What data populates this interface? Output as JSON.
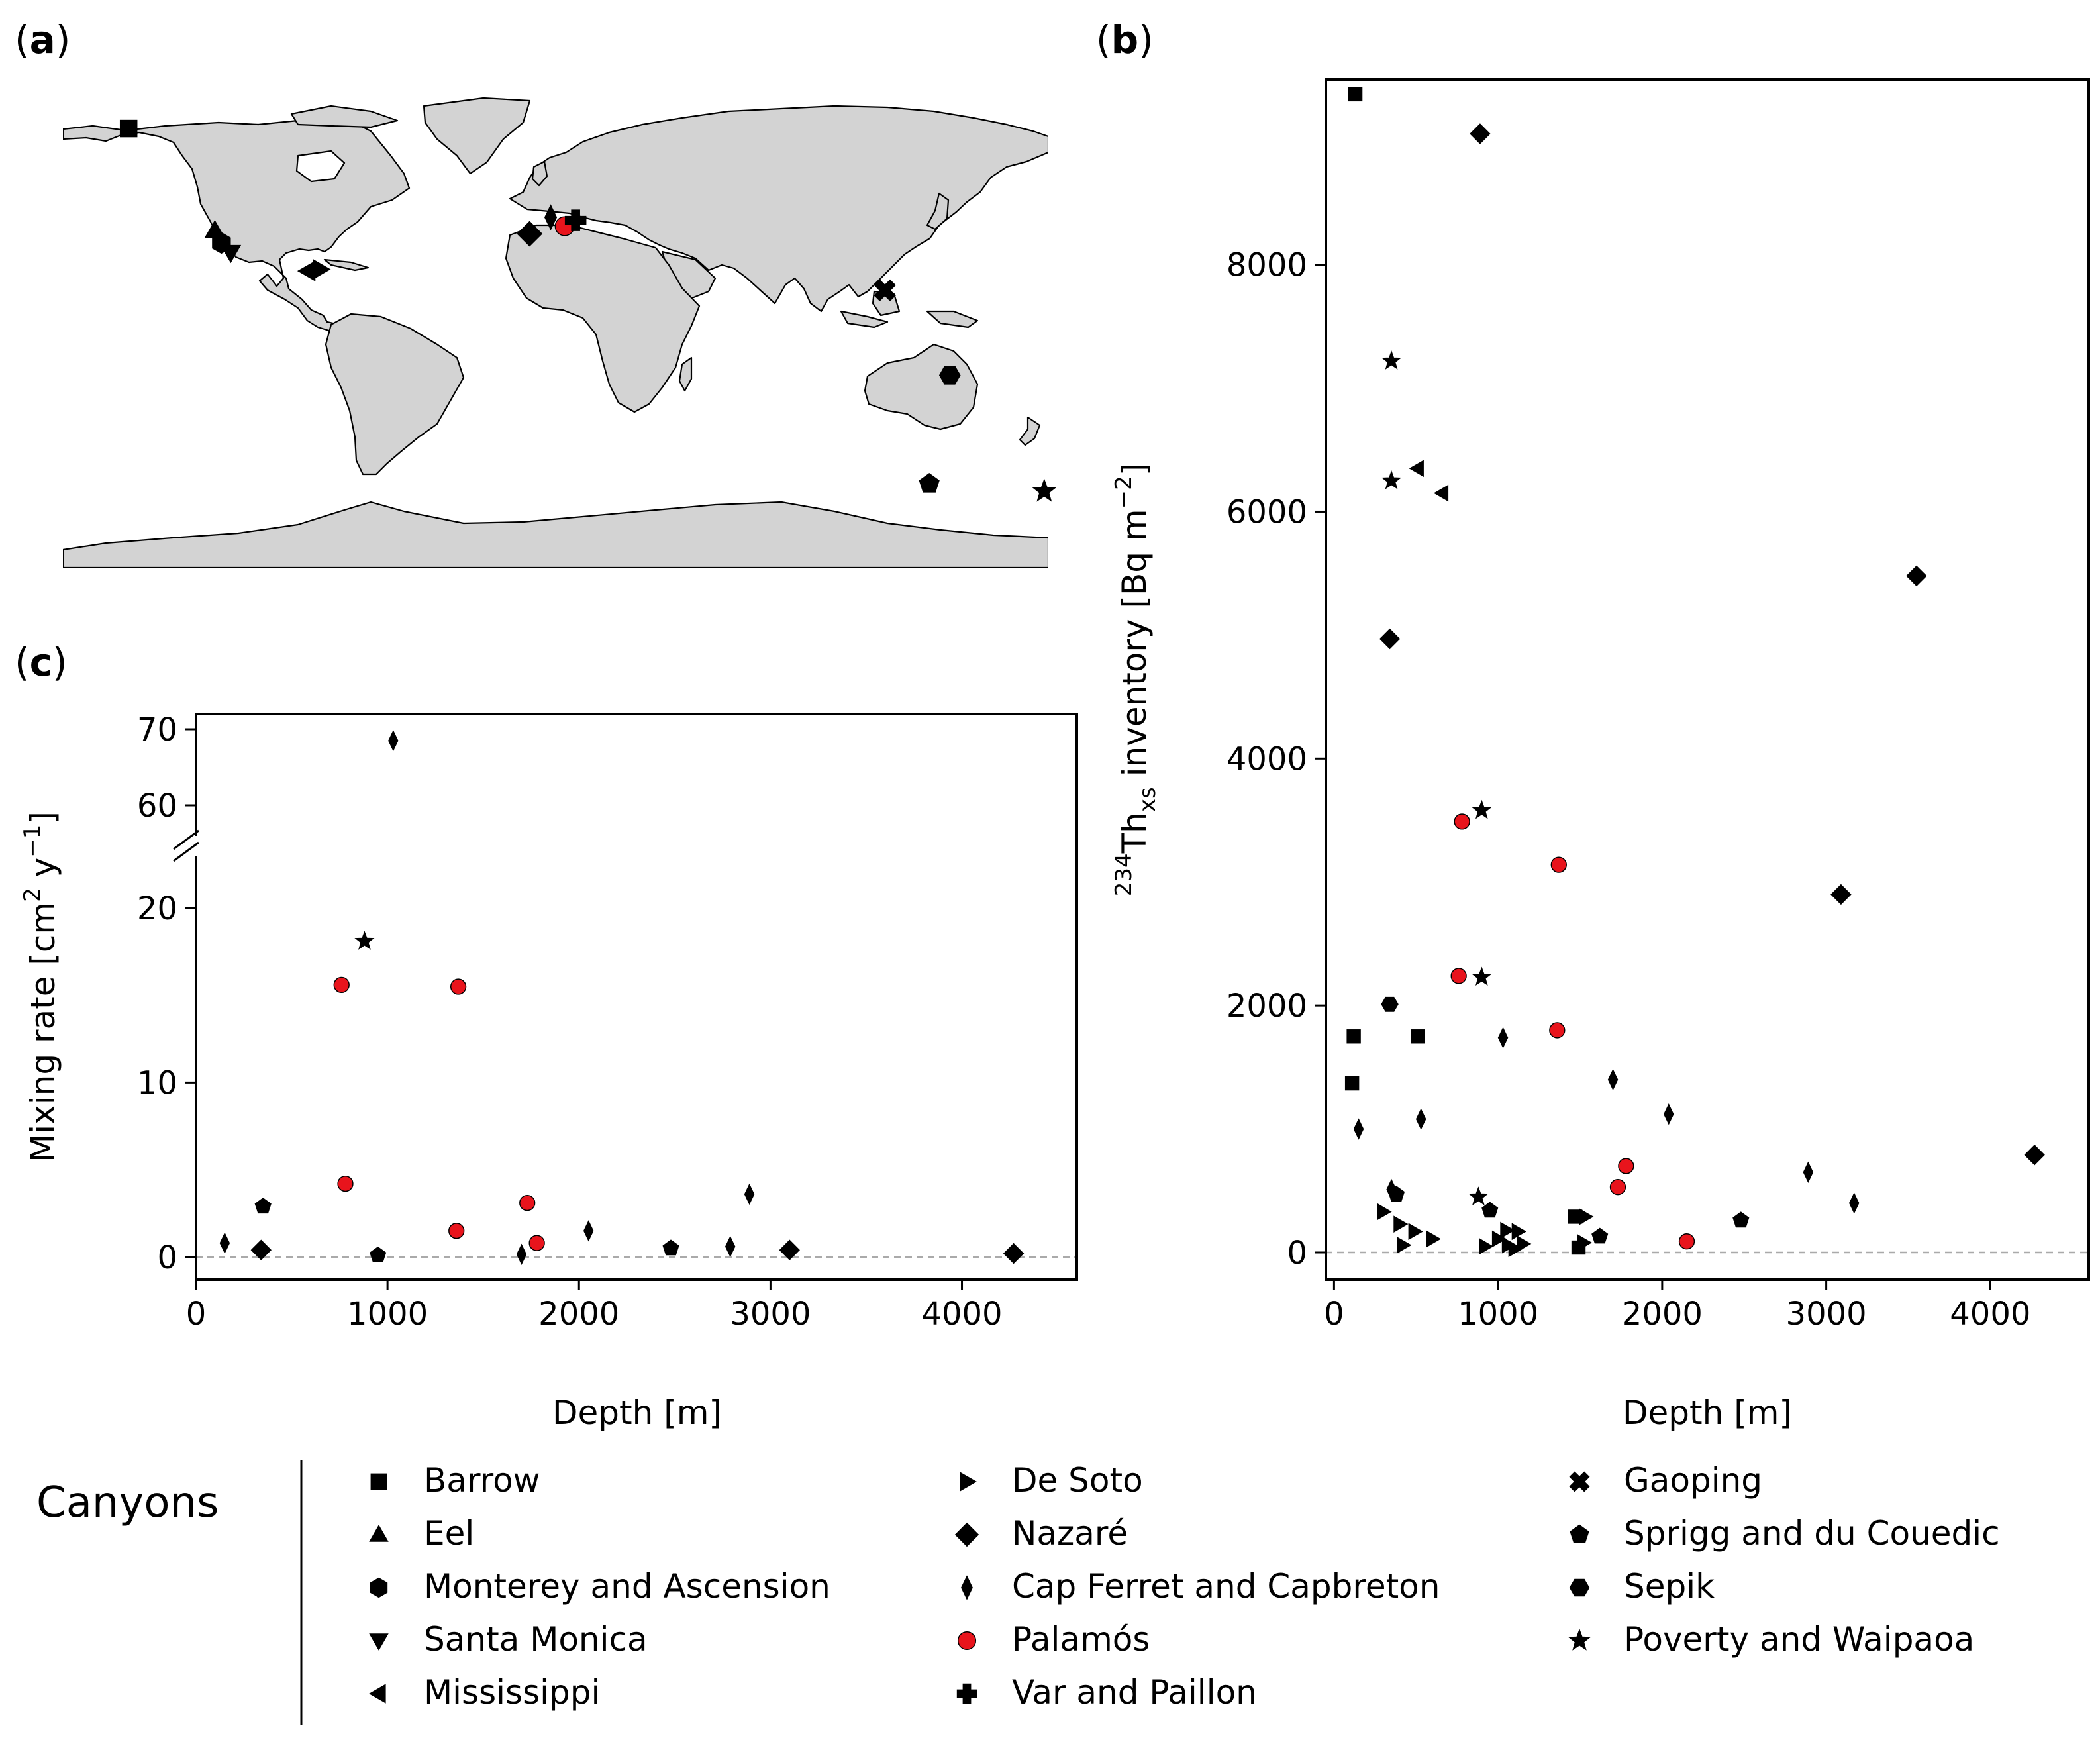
{
  "panels": {
    "a": {
      "label": "a"
    },
    "b": {
      "label": "b"
    },
    "c": {
      "label": "c"
    }
  },
  "legend": {
    "title": "Canyons",
    "entries": [
      {
        "name": "Barrow",
        "marker": "square",
        "color": "#000000"
      },
      {
        "name": "Eel",
        "marker": "triangle-up",
        "color": "#000000"
      },
      {
        "name": "Monterey and Ascension",
        "marker": "hexagon",
        "color": "#000000"
      },
      {
        "name": "Santa Monica",
        "marker": "triangle-down",
        "color": "#000000"
      },
      {
        "name": "Mississippi",
        "marker": "triangle-left",
        "color": "#000000"
      },
      {
        "name": "De Soto",
        "marker": "triangle-right",
        "color": "#000000"
      },
      {
        "name": "Nazaré",
        "marker": "diamond",
        "color": "#000000"
      },
      {
        "name": "Cap Ferret and Capbreton",
        "marker": "thin-diamond",
        "color": "#000000"
      },
      {
        "name": "Palamós",
        "marker": "circle",
        "color": "#e8141c"
      },
      {
        "name": "Var and Paillon",
        "marker": "plus",
        "color": "#000000"
      },
      {
        "name": "Gaoping",
        "marker": "x",
        "color": "#000000"
      },
      {
        "name": "Sprigg and du Couedic",
        "marker": "pentagon",
        "color": "#000000"
      },
      {
        "name": "Sepik",
        "marker": "hexagon2",
        "color": "#000000"
      },
      {
        "name": "Poverty and Waipaoa",
        "marker": "star",
        "color": "#000000"
      }
    ]
  },
  "colors": {
    "land": "#d3d3d3",
    "coast": "#000000",
    "borders": "#a6a6a6",
    "palamos": "#e8141c",
    "zero_line": "#aaaaaa"
  },
  "chart_data": [
    {
      "panel": "a",
      "type": "map",
      "projection": "plate-carree",
      "lon_range": [
        -180,
        180
      ],
      "lat_range": [
        -90,
        90
      ],
      "points": [
        {
          "canyon": "Barrow",
          "lon": -156,
          "lat": 71.5
        },
        {
          "canyon": "Eel",
          "lon": -124.5,
          "lat": 40.5
        },
        {
          "canyon": "Monterey and Ascension",
          "lon": -122.1,
          "lat": 36.7
        },
        {
          "canyon": "Santa Monica",
          "lon": -118.7,
          "lat": 33.8
        },
        {
          "canyon": "Mississippi",
          "lon": -90.5,
          "lat": 28.2
        },
        {
          "canyon": "De Soto",
          "lon": -86,
          "lat": 28.7
        },
        {
          "canyon": "Nazaré",
          "lon": -9.5,
          "lat": 39.5
        },
        {
          "canyon": "Cap Ferret and Capbreton",
          "lon": -1.8,
          "lat": 44.5
        },
        {
          "canyon": "Palamós",
          "lon": 3.3,
          "lat": 41.8
        },
        {
          "canyon": "Var and Paillon",
          "lon": 7.3,
          "lat": 43.6
        },
        {
          "canyon": "Gaoping",
          "lon": 120.3,
          "lat": 22.3
        },
        {
          "canyon": "Sepik",
          "lon": 144,
          "lat": -3.5
        },
        {
          "canyon": "Sprigg and du Couedic",
          "lon": 136.5,
          "lat": -36.5
        },
        {
          "canyon": "Poverty and Waipaoa",
          "lon": 178.5,
          "lat": -38.8
        }
      ]
    },
    {
      "panel": "b",
      "type": "scatter",
      "xlabel": "Depth [m]",
      "ylabel_parts": {
        "sup": "234",
        "base": "Th",
        "sub": "xs",
        "rest": " inventory [Bq m",
        "unit_sup": "−2",
        "close": "]"
      },
      "xlim": [
        -50,
        4600
      ],
      "ylim": [
        -220,
        9500
      ],
      "xticks": [
        {
          "v": 0,
          "label": "0"
        },
        {
          "v": 1000,
          "label": "1000"
        },
        {
          "v": 2000,
          "label": "2000"
        },
        {
          "v": 3000,
          "label": "3000"
        },
        {
          "v": 4000,
          "label": "4000"
        }
      ],
      "yticks": [
        {
          "v": 0,
          "label": "0"
        },
        {
          "v": 2000,
          "label": "2000"
        },
        {
          "v": 4000,
          "label": "4000"
        },
        {
          "v": 6000,
          "label": "6000"
        },
        {
          "v": 8000,
          "label": "8000"
        }
      ],
      "zero_line": 0,
      "points": [
        {
          "canyon": "Barrow",
          "x": 130,
          "y": 9380
        },
        {
          "canyon": "Barrow",
          "x": 120,
          "y": 1750
        },
        {
          "canyon": "Barrow",
          "x": 110,
          "y": 1370
        },
        {
          "canyon": "Barrow",
          "x": 510,
          "y": 1750
        },
        {
          "canyon": "Barrow",
          "x": 1470,
          "y": 290
        },
        {
          "canyon": "Barrow",
          "x": 1490,
          "y": 40
        },
        {
          "canyon": "Nazaré",
          "x": 890,
          "y": 9060
        },
        {
          "canyon": "Nazaré",
          "x": 340,
          "y": 4970
        },
        {
          "canyon": "Nazaré",
          "x": 3550,
          "y": 5480
        },
        {
          "canyon": "Nazaré",
          "x": 3090,
          "y": 2900
        },
        {
          "canyon": "Nazaré",
          "x": 4270,
          "y": 790
        },
        {
          "canyon": "Poverty and Waipaoa",
          "x": 350,
          "y": 7220
        },
        {
          "canyon": "Poverty and Waipaoa",
          "x": 350,
          "y": 6250
        },
        {
          "canyon": "Poverty and Waipaoa",
          "x": 900,
          "y": 3580
        },
        {
          "canyon": "Poverty and Waipaoa",
          "x": 900,
          "y": 2230
        },
        {
          "canyon": "Poverty and Waipaoa",
          "x": 880,
          "y": 450
        },
        {
          "canyon": "Mississippi",
          "x": 510,
          "y": 6350
        },
        {
          "canyon": "Mississippi",
          "x": 660,
          "y": 6150
        },
        {
          "canyon": "Palamós",
          "x": 780,
          "y": 3490
        },
        {
          "canyon": "Palamós",
          "x": 1370,
          "y": 3140
        },
        {
          "canyon": "Palamós",
          "x": 760,
          "y": 2240
        },
        {
          "canyon": "Palamós",
          "x": 1360,
          "y": 1800
        },
        {
          "canyon": "Palamós",
          "x": 1780,
          "y": 700
        },
        {
          "canyon": "Palamós",
          "x": 1730,
          "y": 530
        },
        {
          "canyon": "Palamós",
          "x": 2150,
          "y": 90
        },
        {
          "canyon": "Sepik",
          "x": 340,
          "y": 2010
        },
        {
          "canyon": "Cap Ferret and Capbreton",
          "x": 150,
          "y": 1000
        },
        {
          "canyon": "Cap Ferret and Capbreton",
          "x": 530,
          "y": 1080
        },
        {
          "canyon": "Cap Ferret and Capbreton",
          "x": 1030,
          "y": 1740
        },
        {
          "canyon": "Cap Ferret and Capbreton",
          "x": 1700,
          "y": 1400
        },
        {
          "canyon": "Cap Ferret and Capbreton",
          "x": 2040,
          "y": 1120
        },
        {
          "canyon": "Cap Ferret and Capbreton",
          "x": 350,
          "y": 510
        },
        {
          "canyon": "Cap Ferret and Capbreton",
          "x": 2890,
          "y": 650
        },
        {
          "canyon": "Cap Ferret and Capbreton",
          "x": 3170,
          "y": 400
        },
        {
          "canyon": "Sprigg and du Couedic",
          "x": 380,
          "y": 470
        },
        {
          "canyon": "Sprigg and du Couedic",
          "x": 950,
          "y": 340
        },
        {
          "canyon": "Sprigg and du Couedic",
          "x": 1620,
          "y": 130
        },
        {
          "canyon": "Sprigg and du Couedic",
          "x": 2480,
          "y": 260
        },
        {
          "canyon": "De Soto",
          "x": 300,
          "y": 330
        },
        {
          "canyon": "De Soto",
          "x": 400,
          "y": 230
        },
        {
          "canyon": "De Soto",
          "x": 490,
          "y": 170
        },
        {
          "canyon": "De Soto",
          "x": 600,
          "y": 110
        },
        {
          "canyon": "De Soto",
          "x": 420,
          "y": 60
        },
        {
          "canyon": "De Soto",
          "x": 920,
          "y": 50
        },
        {
          "canyon": "De Soto",
          "x": 1000,
          "y": 110
        },
        {
          "canyon": "De Soto",
          "x": 1050,
          "y": 180
        },
        {
          "canyon": "De Soto",
          "x": 1120,
          "y": 170
        },
        {
          "canyon": "De Soto",
          "x": 1060,
          "y": 60
        },
        {
          "canyon": "De Soto",
          "x": 1100,
          "y": 30
        },
        {
          "canyon": "De Soto",
          "x": 1150,
          "y": 70
        },
        {
          "canyon": "De Soto",
          "x": 1530,
          "y": 290
        },
        {
          "canyon": "De Soto",
          "x": 1520,
          "y": 80
        }
      ]
    },
    {
      "panel": "c",
      "type": "scatter",
      "broken_y_axis": true,
      "xlabel": "Depth [m]",
      "ylabel_parts": {
        "base": "Mixing rate [cm",
        "sup1": "2",
        "mid": " y",
        "sup2": "−1",
        "close": "]"
      },
      "xlim": [
        0,
        4600
      ],
      "ylim_lower": [
        -1.3,
        23
      ],
      "ylim_upper": [
        56,
        72
      ],
      "xticks": [
        {
          "v": 0,
          "label": "0"
        },
        {
          "v": 1000,
          "label": "1000"
        },
        {
          "v": 2000,
          "label": "2000"
        },
        {
          "v": 3000,
          "label": "3000"
        },
        {
          "v": 4000,
          "label": "4000"
        }
      ],
      "yticks_lower": [
        {
          "v": 0,
          "label": "0"
        },
        {
          "v": 10,
          "label": "10"
        },
        {
          "v": 20,
          "label": "20"
        }
      ],
      "yticks_upper": [
        {
          "v": 60,
          "label": "60"
        },
        {
          "v": 70,
          "label": "70"
        }
      ],
      "zero_line": 0,
      "points": [
        {
          "canyon": "Cap Ferret and Capbreton",
          "x": 1030,
          "y": 68.5
        },
        {
          "canyon": "Poverty and Waipaoa",
          "x": 880,
          "y": 18.1
        },
        {
          "canyon": "Palamós",
          "x": 760,
          "y": 15.6
        },
        {
          "canyon": "Palamós",
          "x": 1370,
          "y": 15.5
        },
        {
          "canyon": "Palamós",
          "x": 780,
          "y": 4.2
        },
        {
          "canyon": "Palamós",
          "x": 1730,
          "y": 3.1
        },
        {
          "canyon": "Palamós",
          "x": 1360,
          "y": 1.5
        },
        {
          "canyon": "Palamós",
          "x": 1780,
          "y": 0.8
        },
        {
          "canyon": "Sprigg and du Couedic",
          "x": 350,
          "y": 2.9
        },
        {
          "canyon": "Sprigg and du Couedic",
          "x": 950,
          "y": 0.1
        },
        {
          "canyon": "Sprigg and du Couedic",
          "x": 2480,
          "y": 0.5
        },
        {
          "canyon": "Cap Ferret and Capbreton",
          "x": 150,
          "y": 0.8
        },
        {
          "canyon": "Cap Ferret and Capbreton",
          "x": 1700,
          "y": 0.15
        },
        {
          "canyon": "Cap Ferret and Capbreton",
          "x": 2050,
          "y": 1.5
        },
        {
          "canyon": "Cap Ferret and Capbreton",
          "x": 2790,
          "y": 0.6
        },
        {
          "canyon": "Cap Ferret and Capbreton",
          "x": 2890,
          "y": 3.6
        },
        {
          "canyon": "Nazaré",
          "x": 340,
          "y": 0.4
        },
        {
          "canyon": "Nazaré",
          "x": 3100,
          "y": 0.4
        },
        {
          "canyon": "Nazaré",
          "x": 4270,
          "y": 0.2
        }
      ]
    }
  ]
}
